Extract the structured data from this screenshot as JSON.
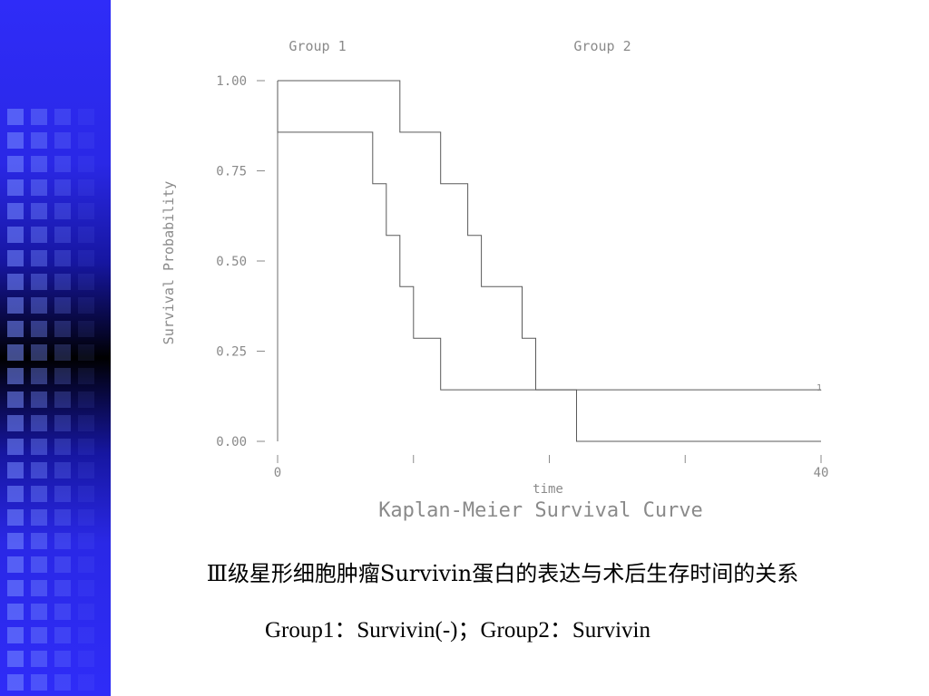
{
  "slide": {
    "caption_line1": "Ⅲ级星形细胞肿瘤Survivin蛋白的表达与术后生存时间的关系",
    "caption_line2": "Group1：Survivin(-)；Group2：Survivin",
    "sidebar_color": "#2f2cf8"
  },
  "chart_data": {
    "type": "line",
    "step": true,
    "title": "Kaplan-Meier Survival Curve",
    "xlabel": "time",
    "ylabel": "Survival Probability",
    "xlim": [
      0,
      40
    ],
    "ylim": [
      0,
      1
    ],
    "x_tick_labels": [
      "0",
      "40"
    ],
    "y_tick_labels": [
      "1.00",
      "0.75",
      "0.50",
      "0.25",
      "0.00"
    ],
    "group_labels": [
      "Group 1",
      "Group 2"
    ],
    "censor_mark": "1",
    "series": [
      {
        "name": "Group 1",
        "points": [
          [
            0,
            1.0
          ],
          [
            9,
            1.0
          ],
          [
            9,
            0.857
          ],
          [
            12,
            0.857
          ],
          [
            12,
            0.714
          ],
          [
            14,
            0.714
          ],
          [
            14,
            0.571
          ],
          [
            15,
            0.571
          ],
          [
            15,
            0.429
          ],
          [
            18,
            0.429
          ],
          [
            18,
            0.286
          ],
          [
            19,
            0.286
          ],
          [
            19,
            0.143
          ],
          [
            22,
            0.143
          ],
          [
            22,
            0.0
          ],
          [
            40,
            0.0
          ]
        ]
      },
      {
        "name": "Group 2",
        "points": [
          [
            0,
            1.0
          ],
          [
            0,
            0.857
          ],
          [
            7,
            0.857
          ],
          [
            7,
            0.714
          ],
          [
            8,
            0.714
          ],
          [
            8,
            0.571
          ],
          [
            9,
            0.571
          ],
          [
            9,
            0.429
          ],
          [
            10,
            0.429
          ],
          [
            10,
            0.286
          ],
          [
            12,
            0.286
          ],
          [
            12,
            0.143
          ],
          [
            40,
            0.143
          ]
        ]
      }
    ]
  }
}
